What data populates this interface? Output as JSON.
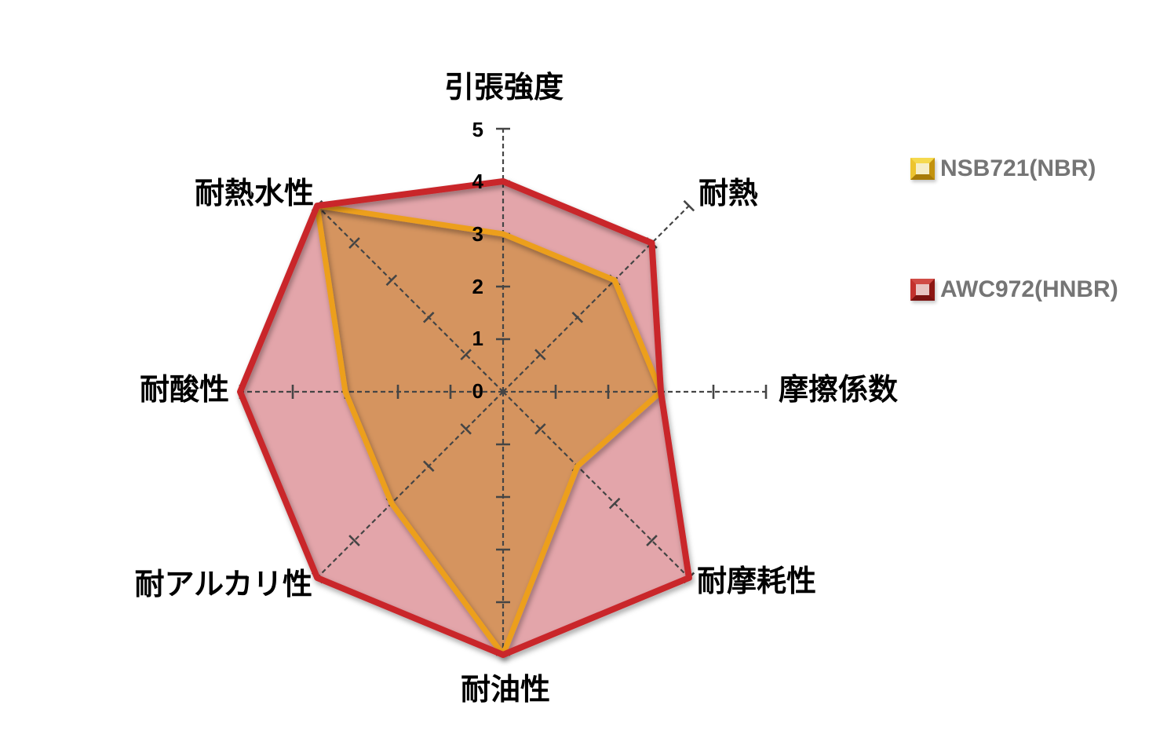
{
  "chart_data": {
    "type": "radar",
    "title": "",
    "categories": [
      "引張強度",
      "耐熱",
      "摩擦係数",
      "耐摩耗性",
      "耐油性",
      "耐アルカリ性",
      "耐酸性",
      "耐熱水性"
    ],
    "axis_min": 0,
    "axis_max": 5,
    "tick_labels": [
      "0",
      "1",
      "2",
      "3",
      "4",
      "5"
    ],
    "grid": "dashed radial spokes with perpendicular unit ticks",
    "legend_position": "right",
    "axis_color": "#454545",
    "label_color": "#000000",
    "legend_text_color": "#757575",
    "series": [
      {
        "name": "NSB721(NBR)",
        "values": [
          3,
          3,
          3,
          2,
          5,
          3,
          3,
          5
        ],
        "line_color": "#EC9F1F",
        "fill_color": "#D5945F",
        "marker": "gold-beveled-square"
      },
      {
        "name": "AWC972(HNBR)",
        "values": [
          4,
          4,
          3,
          5,
          5,
          5,
          5,
          5
        ],
        "line_color": "#C9262C",
        "fill_color": "#E3A5AA",
        "marker": "red-beveled-square"
      }
    ]
  }
}
